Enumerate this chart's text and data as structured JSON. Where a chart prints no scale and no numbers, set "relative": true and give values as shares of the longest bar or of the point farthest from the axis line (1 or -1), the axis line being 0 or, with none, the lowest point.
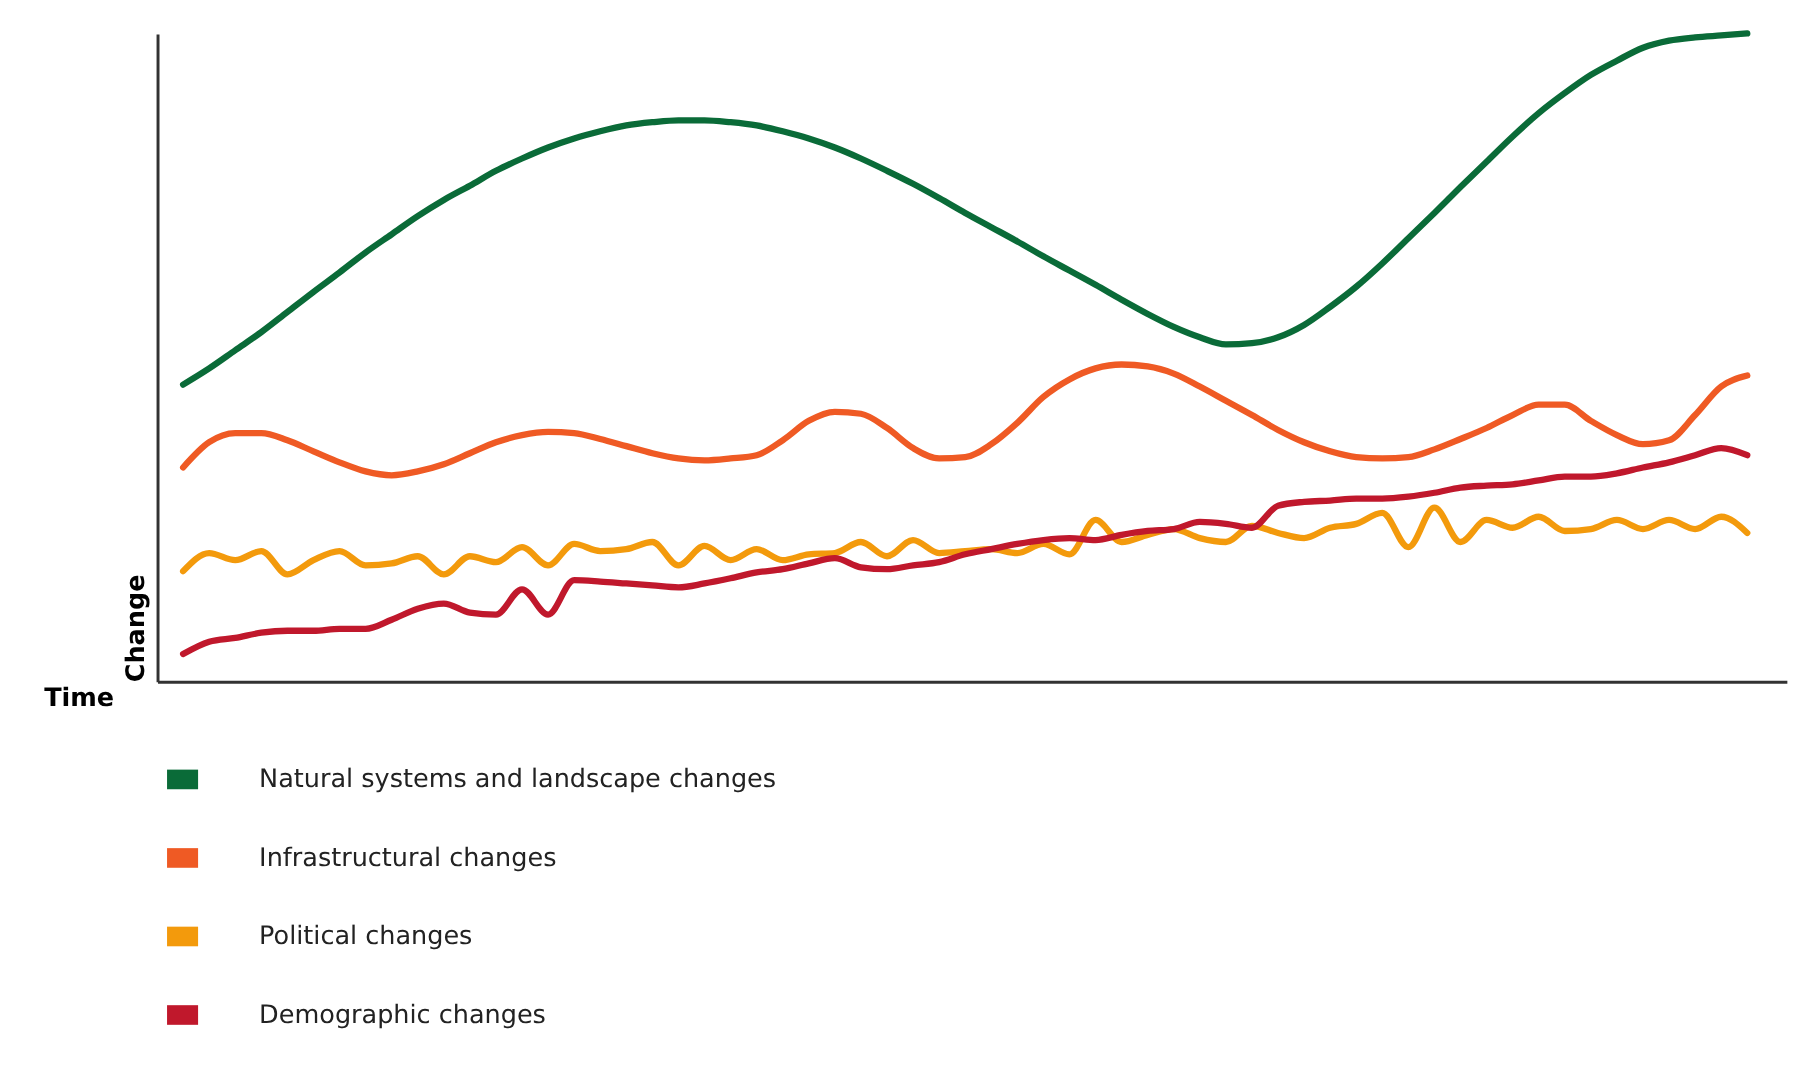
{
  "chart_data": {
    "type": "line",
    "relative": true,
    "xlabel": "Time",
    "ylabel": "Change",
    "grid": false,
    "legend": "bottom",
    "marker": "none",
    "categories": [
      null,
      null,
      null,
      null,
      null,
      null,
      null,
      null,
      null,
      null,
      null,
      null,
      null,
      null,
      null,
      null,
      null,
      null,
      null,
      null,
      null,
      null,
      null,
      null,
      null,
      null,
      null,
      null,
      null,
      null,
      null,
      null,
      null,
      null,
      null,
      null,
      null,
      null,
      null,
      null,
      null,
      null,
      null,
      null,
      null,
      null,
      null,
      null,
      null,
      null,
      null,
      null,
      null,
      null,
      null,
      null,
      null,
      null,
      null,
      null,
      null
    ],
    "series": [
      {
        "name": "Natural systems and landscape changes",
        "color": "#0a6b38",
        "values": [
          0.458,
          0.483,
          0.511,
          0.539,
          0.57,
          0.601,
          0.631,
          0.662,
          0.69,
          0.718,
          0.743,
          0.765,
          0.788,
          0.807,
          0.824,
          0.838,
          0.849,
          0.858,
          0.863,
          0.866,
          0.866,
          0.863,
          0.858,
          0.849,
          0.838,
          0.824,
          0.807,
          0.788,
          0.768,
          0.746,
          0.723,
          0.701,
          0.679,
          0.656,
          0.634,
          0.612,
          0.589,
          0.567,
          0.547,
          0.531,
          0.52,
          0.522,
          0.531,
          0.55,
          0.578,
          0.609,
          0.645,
          0.684,
          0.723,
          0.763,
          0.802,
          0.841,
          0.877,
          0.908,
          0.936,
          0.958,
          0.978,
          0.989,
          0.994,
          0.997,
          1.0
        ]
      },
      {
        "name": "Infrastructural changes",
        "color": "#ef5a24",
        "values": [
          0.33,
          0.369,
          0.383,
          0.383,
          0.372,
          0.355,
          0.338,
          0.324,
          0.318,
          0.324,
          0.335,
          0.352,
          0.369,
          0.38,
          0.385,
          0.383,
          0.374,
          0.363,
          0.352,
          0.344,
          0.341,
          0.344,
          0.349,
          0.372,
          0.402,
          0.416,
          0.413,
          0.391,
          0.36,
          0.344,
          0.346,
          0.366,
          0.399,
          0.439,
          0.466,
          0.483,
          0.489,
          0.486,
          0.475,
          0.455,
          0.433,
          0.411,
          0.388,
          0.369,
          0.355,
          0.346,
          0.344,
          0.346,
          0.358,
          0.374,
          0.391,
          0.411,
          0.427,
          0.427,
          0.402,
          0.38,
          0.366,
          0.372,
          0.411,
          0.455,
          0.472
        ]
      },
      {
        "name": "Political changes",
        "color": "#f39a0c",
        "values": [
          0.17,
          0.198,
          0.187,
          0.201,
          0.165,
          0.187,
          0.201,
          0.179,
          0.182,
          0.193,
          0.165,
          0.193,
          0.184,
          0.207,
          0.179,
          0.212,
          0.201,
          0.204,
          0.215,
          0.179,
          0.209,
          0.187,
          0.204,
          0.187,
          0.196,
          0.198,
          0.215,
          0.193,
          0.218,
          0.198,
          0.201,
          0.204,
          0.198,
          0.212,
          0.196,
          0.249,
          0.215,
          0.226,
          0.235,
          0.221,
          0.215,
          0.24,
          0.229,
          0.221,
          0.237,
          0.243,
          0.26,
          0.207,
          0.268,
          0.215,
          0.249,
          0.237,
          0.254,
          0.232,
          0.235,
          0.249,
          0.235,
          0.249,
          0.235,
          0.254,
          0.229
        ]
      },
      {
        "name": "Demographic changes",
        "color": "#c0182c",
        "values": [
          0.042,
          0.061,
          0.067,
          0.075,
          0.078,
          0.078,
          0.081,
          0.081,
          0.095,
          0.112,
          0.12,
          0.106,
          0.103,
          0.142,
          0.103,
          0.156,
          0.154,
          0.151,
          0.148,
          0.145,
          0.151,
          0.159,
          0.168,
          0.173,
          0.182,
          0.19,
          0.176,
          0.173,
          0.179,
          0.184,
          0.196,
          0.204,
          0.212,
          0.218,
          0.221,
          0.218,
          0.226,
          0.232,
          0.235,
          0.246,
          0.243,
          0.237,
          0.271,
          0.277,
          0.279,
          0.282,
          0.282,
          0.285,
          0.291,
          0.299,
          0.302,
          0.304,
          0.31,
          0.316,
          0.316,
          0.321,
          0.33,
          0.338,
          0.349,
          0.36,
          0.349
        ]
      }
    ]
  }
}
